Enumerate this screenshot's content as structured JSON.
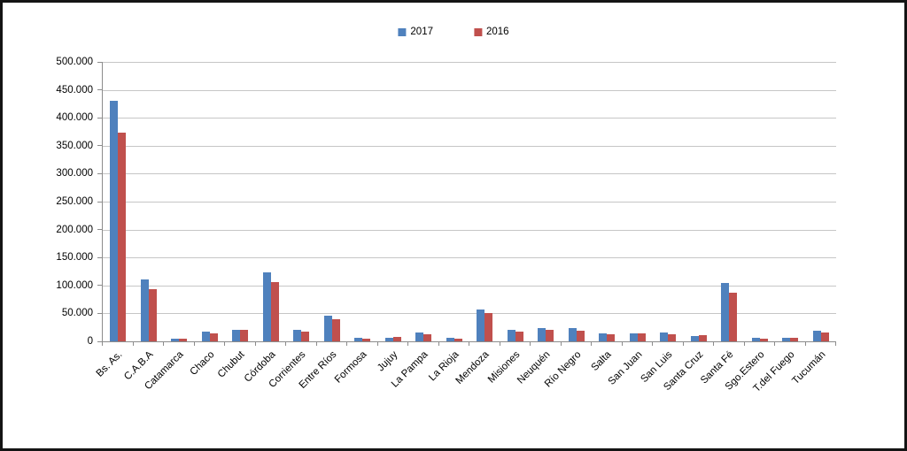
{
  "chart_data": {
    "type": "bar",
    "title": "",
    "categories": [
      "Bs. As.",
      "C.A.B.A",
      "Catamarca",
      "Chaco",
      "Chubut",
      "Córdoba",
      "Corrientes",
      "Entre Ríos",
      "Formosa",
      "Jujuy",
      "La Pampa",
      "La Rioja",
      "Mendoza",
      "Misiones",
      "Neuquén",
      "Río Negro",
      "Salta",
      "San Juan",
      "San Luis",
      "Santa Cruz",
      "Santa Fé",
      "Sgo.Estero",
      "T.del Fuego",
      "Tucumán"
    ],
    "series": [
      {
        "name": "2017",
        "color": "#4F81BD",
        "values": [
          430000,
          110000,
          4000,
          17000,
          21000,
          123000,
          20000,
          46000,
          6000,
          7000,
          16000,
          6000,
          57000,
          20000,
          23000,
          24000,
          14000,
          14000,
          16000,
          10000,
          104000,
          7000,
          6000,
          19000
        ]
      },
      {
        "name": "2016",
        "color": "#C0504D",
        "values": [
          373000,
          94000,
          5000,
          14000,
          20000,
          106000,
          17000,
          39000,
          4000,
          8000,
          13000,
          4000,
          51000,
          17000,
          20000,
          19000,
          12000,
          14000,
          13000,
          11000,
          87000,
          5000,
          6000,
          16000
        ]
      }
    ],
    "xlabel": "",
    "ylabel": "",
    "ylim": [
      0,
      500000
    ],
    "y_tick_step": 50000,
    "y_tick_labels": [
      "0",
      "50.000",
      "100.000",
      "150.000",
      "200.000",
      "250.000",
      "300.000",
      "350.000",
      "400.000",
      "450.000",
      "500.000"
    ],
    "grid": true,
    "legend_position": "top-center",
    "label_rotation_deg": 45
  },
  "colors": {
    "background": "#FFFFFF",
    "frame_border": "#141414",
    "gridline": "#C6C6C6",
    "axis": "#8C8C8C",
    "text": "#000000",
    "series_2017": "#4F81BD",
    "series_2016": "#C0504D"
  }
}
